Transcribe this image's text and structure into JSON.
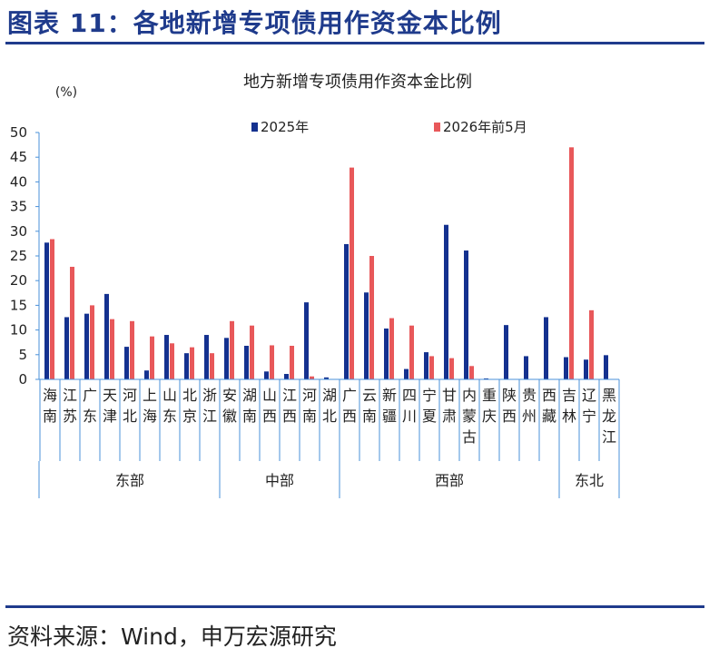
{
  "figure": {
    "title": "图表 11：各地新增专项债用作资金本比例",
    "source": "资料来源：Wind，申万宏源研究"
  },
  "chart_data": {
    "type": "bar",
    "title": "地方新增专项债用作资本金比例",
    "ylabel": "(%)",
    "ylim": [
      0,
      50
    ],
    "yticks": [
      0,
      5,
      10,
      15,
      20,
      25,
      30,
      35,
      40,
      45,
      50
    ],
    "grid": false,
    "legend_position": "top",
    "colors": {
      "2025年": "#14318f",
      "2026年前5月": "#e8585a",
      "axis": "#4a90d9"
    },
    "categories": [
      "海南",
      "江苏",
      "广东",
      "天津",
      "河北",
      "上海",
      "山东",
      "北京",
      "浙江",
      "安徽",
      "湖南",
      "山西",
      "江西",
      "河南",
      "湖北",
      "广西",
      "云南",
      "新疆",
      "四川",
      "宁夏",
      "甘肃",
      "内蒙古",
      "重庆",
      "陕西",
      "贵州",
      "西藏",
      "吉林",
      "辽宁",
      "黑龙江"
    ],
    "groups": [
      {
        "name": "东部",
        "count": 9
      },
      {
        "name": "中部",
        "count": 6
      },
      {
        "name": "西部",
        "count": 11
      },
      {
        "name": "东北",
        "count": 3
      }
    ],
    "series": [
      {
        "name": "2025年",
        "values": [
          27.7,
          12.6,
          13.3,
          17.3,
          6.6,
          1.8,
          9.0,
          5.3,
          9.0,
          8.4,
          6.8,
          1.6,
          1.1,
          15.6,
          0.4,
          27.4,
          17.6,
          10.3,
          2.1,
          5.5,
          31.3,
          26.1,
          0.2,
          11.0,
          4.7,
          12.6,
          4.5,
          4.0,
          4.9
        ]
      },
      {
        "name": "2026年前5月",
        "values": [
          28.4,
          22.8,
          15.0,
          12.2,
          11.8,
          8.7,
          7.3,
          6.5,
          5.3,
          11.8,
          10.9,
          6.9,
          6.8,
          0.6,
          0,
          42.9,
          25.0,
          12.4,
          10.9,
          4.7,
          4.3,
          2.7,
          0,
          0,
          0,
          0,
          47.0,
          14.0,
          0
        ]
      }
    ]
  }
}
